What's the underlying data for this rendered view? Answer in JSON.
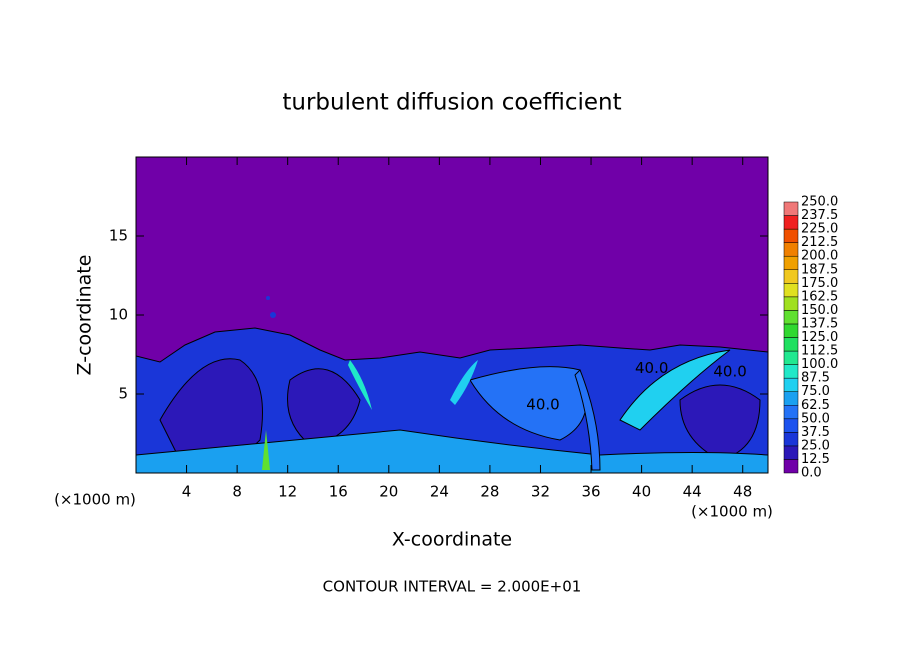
{
  "chart_data": {
    "type": "contour",
    "title": "turbulent diffusion coefficient",
    "x_label": "X-coordinate",
    "y_label": "Z-coordinate",
    "x_unit_labels": [
      "(×1000 m)",
      "(×1000 m)"
    ],
    "footer": "CONTOUR INTERVAL = 2.000E+01",
    "xlim": [
      0,
      50
    ],
    "ylim": [
      0,
      20
    ],
    "xticks": [
      4,
      8,
      12,
      16,
      20,
      24,
      28,
      32,
      36,
      40,
      44,
      48
    ],
    "yticks": [
      5,
      10,
      15
    ],
    "colorbar": {
      "levels": [
        {
          "value": 0,
          "label": "0.0"
        },
        {
          "value": 12.5,
          "label": "12.5"
        },
        {
          "value": 25,
          "label": "25.0"
        },
        {
          "value": 37.5,
          "label": "37.5"
        },
        {
          "value": 50,
          "label": "50.0"
        },
        {
          "value": 62.5,
          "label": "62.5"
        },
        {
          "value": 75,
          "label": "75.0"
        },
        {
          "value": 87.5,
          "label": "87.5"
        },
        {
          "value": 100,
          "label": "100.0"
        },
        {
          "value": 112.5,
          "label": "112.5"
        },
        {
          "value": 125,
          "label": "125.0"
        },
        {
          "value": 137.5,
          "label": "137.5"
        },
        {
          "value": 150,
          "label": "150.0"
        },
        {
          "value": 162.5,
          "label": "162.5"
        },
        {
          "value": 175,
          "label": "175.0"
        },
        {
          "value": 187.5,
          "label": "187.5"
        },
        {
          "value": 200,
          "label": "200.0"
        },
        {
          "value": 212.5,
          "label": "212.5"
        },
        {
          "value": 225,
          "label": "225.0"
        },
        {
          "value": 237.5,
          "label": "237.5"
        },
        {
          "value": 250,
          "label": "250.0"
        }
      ],
      "colors": [
        "#7000a8",
        "#2c18b8",
        "#1a36d8",
        "#1c52ee",
        "#2472f6",
        "#1aa0f0",
        "#20d0f0",
        "#20e8c8",
        "#20e890",
        "#20e060",
        "#30d830",
        "#60e030",
        "#a0e020",
        "#e0e020",
        "#f0c820",
        "#f0a000",
        "#f08000",
        "#f05000",
        "#f02020",
        "#f07878"
      ]
    },
    "annotations": [
      {
        "text": "40.0",
        "x": 47,
        "y": 6.4
      },
      {
        "text": "40.0",
        "x": 40.8,
        "y": 6.6
      },
      {
        "text": "40.0",
        "x": 32.2,
        "y": 4.3
      }
    ]
  }
}
